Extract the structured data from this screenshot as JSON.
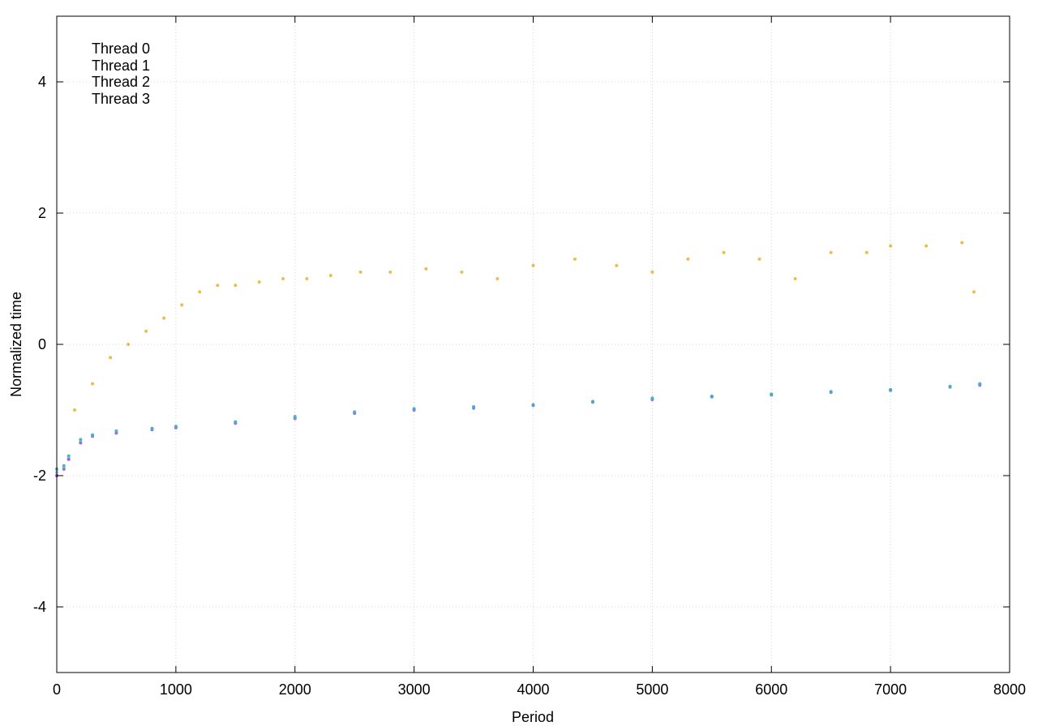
{
  "chart_data": {
    "type": "scatter",
    "title": "",
    "xlabel": "Period",
    "ylabel": "Normalized time",
    "xlim": [
      0,
      8000
    ],
    "ylim": [
      -5,
      5
    ],
    "xticks": [
      0,
      1000,
      2000,
      3000,
      4000,
      5000,
      6000,
      7000,
      8000
    ],
    "xtick_labels": [
      "0",
      "1000",
      "2000",
      "3000",
      "4000",
      "5000",
      "6000",
      "7000",
      "8000"
    ],
    "yticks": [
      -4,
      -2,
      0,
      2,
      4
    ],
    "ytick_labels": [
      "-4",
      "-2",
      "0",
      "2",
      "4"
    ],
    "grid": true,
    "legend_position": "top-left",
    "series": [
      {
        "name": "Thread 0",
        "color": "#9400d3",
        "description_points": "dense baseline band",
        "x": [
          0,
          60,
          100,
          200,
          300,
          500,
          800,
          1000,
          1500,
          2000,
          2500,
          3000,
          3500,
          4000,
          4500,
          5000,
          5500,
          6000,
          6500,
          7000,
          7500,
          7750
        ],
        "y": [
          -2.0,
          -1.9,
          -1.75,
          -1.5,
          -1.4,
          -1.35,
          -1.3,
          -1.27,
          -1.2,
          -1.13,
          -1.05,
          -1.0,
          -0.97,
          -0.93,
          -0.88,
          -0.84,
          -0.8,
          -0.77,
          -0.73,
          -0.7,
          -0.65,
          -0.62
        ]
      },
      {
        "name": "Thread 1",
        "color": "#009e73",
        "x": [
          0,
          60,
          100,
          200,
          300,
          500,
          800,
          1000,
          1500,
          2000,
          2500,
          3000,
          3500,
          4000,
          4500,
          5000,
          5500,
          6000,
          6500,
          7000,
          7500,
          7750
        ],
        "y": [
          -1.9,
          -1.85,
          -1.7,
          -1.45,
          -1.38,
          -1.32,
          -1.28,
          -1.25,
          -1.18,
          -1.1,
          -1.03,
          -0.98,
          -0.95,
          -0.92,
          -0.87,
          -0.82,
          -0.79,
          -0.76,
          -0.72,
          -0.69,
          -0.64,
          -0.6
        ]
      },
      {
        "name": "Thread 2",
        "color": "#56b4e9",
        "x": [
          0,
          60,
          100,
          200,
          300,
          500,
          800,
          1000,
          1500,
          2000,
          2500,
          3000,
          3500,
          4000,
          4500,
          5000,
          5500,
          6000,
          6500,
          7000,
          7500,
          7750
        ],
        "y": [
          -1.95,
          -1.88,
          -1.72,
          -1.48,
          -1.39,
          -1.33,
          -1.29,
          -1.26,
          -1.19,
          -1.12,
          -1.04,
          -0.99,
          -0.96,
          -0.93,
          -0.88,
          -0.83,
          -0.8,
          -0.77,
          -0.73,
          -0.7,
          -0.65,
          -0.61
        ]
      },
      {
        "name": "Thread 3",
        "color": "#e69f00",
        "x": [
          150,
          300,
          450,
          600,
          750,
          900,
          1050,
          1200,
          1350,
          1500,
          1700,
          1900,
          2100,
          2300,
          2550,
          2800,
          3100,
          3400,
          3700,
          4000,
          4350,
          4700,
          5000,
          5300,
          5600,
          5900,
          6200,
          6500,
          6800,
          7000,
          7300,
          7600,
          7700
        ],
        "y": [
          -1.0,
          -0.6,
          -0.2,
          0.0,
          0.2,
          0.4,
          0.6,
          0.8,
          0.9,
          0.9,
          0.95,
          1.0,
          1.0,
          1.05,
          1.1,
          1.1,
          1.15,
          1.1,
          1.0,
          1.2,
          1.3,
          1.2,
          1.1,
          1.3,
          1.4,
          1.3,
          1.0,
          1.4,
          1.4,
          1.5,
          1.5,
          1.55,
          0.8
        ]
      }
    ]
  }
}
